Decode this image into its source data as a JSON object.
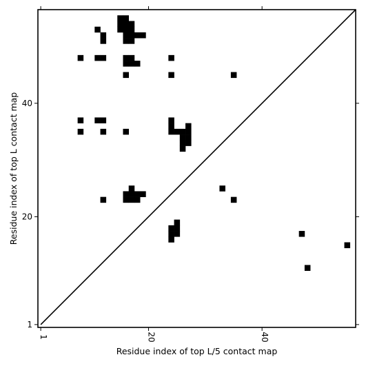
{
  "chart_data": {
    "type": "heatmap",
    "xlabel": "Residue index of top L/5 contact map",
    "ylabel": "Residue index of top L contact map",
    "xlim": [
      0.5,
      56.5
    ],
    "ylim": [
      0.5,
      56.5
    ],
    "x_ticks": [
      {
        "value": 1,
        "label": "1"
      },
      {
        "value": 20,
        "label": "20"
      },
      {
        "value": 40,
        "label": "40"
      }
    ],
    "y_ticks": [
      {
        "value": 1,
        "label": "1"
      },
      {
        "value": 20,
        "label": "20"
      },
      {
        "value": 40,
        "label": "40"
      }
    ],
    "diagonal": true,
    "grid": false,
    "cell_color": "#000000",
    "upper_triangle_cells": [
      [
        15,
        55
      ],
      [
        16,
        55
      ],
      [
        15,
        54
      ],
      [
        16,
        54
      ],
      [
        17,
        54
      ],
      [
        11,
        53
      ],
      [
        15,
        53
      ],
      [
        16,
        53
      ],
      [
        17,
        53
      ],
      [
        12,
        52
      ],
      [
        16,
        52
      ],
      [
        17,
        52
      ],
      [
        18,
        52
      ],
      [
        19,
        52
      ],
      [
        12,
        51
      ],
      [
        16,
        51
      ],
      [
        17,
        51
      ],
      [
        8,
        48
      ],
      [
        11,
        48
      ],
      [
        12,
        48
      ],
      [
        16,
        48
      ],
      [
        17,
        48
      ],
      [
        24,
        48
      ],
      [
        16,
        47
      ],
      [
        17,
        47
      ],
      [
        18,
        47
      ],
      [
        16,
        45
      ],
      [
        24,
        45
      ],
      [
        35,
        45
      ],
      [
        8,
        37
      ],
      [
        11,
        37
      ],
      [
        12,
        37
      ],
      [
        24,
        37
      ],
      [
        24,
        36
      ],
      [
        27,
        36
      ],
      [
        8,
        35
      ],
      [
        12,
        35
      ],
      [
        16,
        35
      ],
      [
        24,
        35
      ],
      [
        25,
        35
      ],
      [
        26,
        35
      ],
      [
        27,
        35
      ],
      [
        26,
        34
      ],
      [
        27,
        34
      ],
      [
        26,
        33
      ],
      [
        27,
        33
      ],
      [
        26,
        32
      ],
      [
        17,
        25
      ],
      [
        33,
        25
      ],
      [
        16,
        24
      ],
      [
        17,
        24
      ],
      [
        18,
        24
      ],
      [
        19,
        24
      ],
      [
        12,
        23
      ],
      [
        16,
        23
      ],
      [
        17,
        23
      ],
      [
        18,
        23
      ],
      [
        35,
        23
      ]
    ],
    "lower_triangle_cells": [
      [
        25,
        19
      ],
      [
        24,
        18
      ],
      [
        25,
        18
      ],
      [
        24,
        17
      ],
      [
        25,
        17
      ],
      [
        47,
        17
      ],
      [
        24,
        16
      ],
      [
        55,
        15
      ],
      [
        48,
        11
      ]
    ]
  }
}
